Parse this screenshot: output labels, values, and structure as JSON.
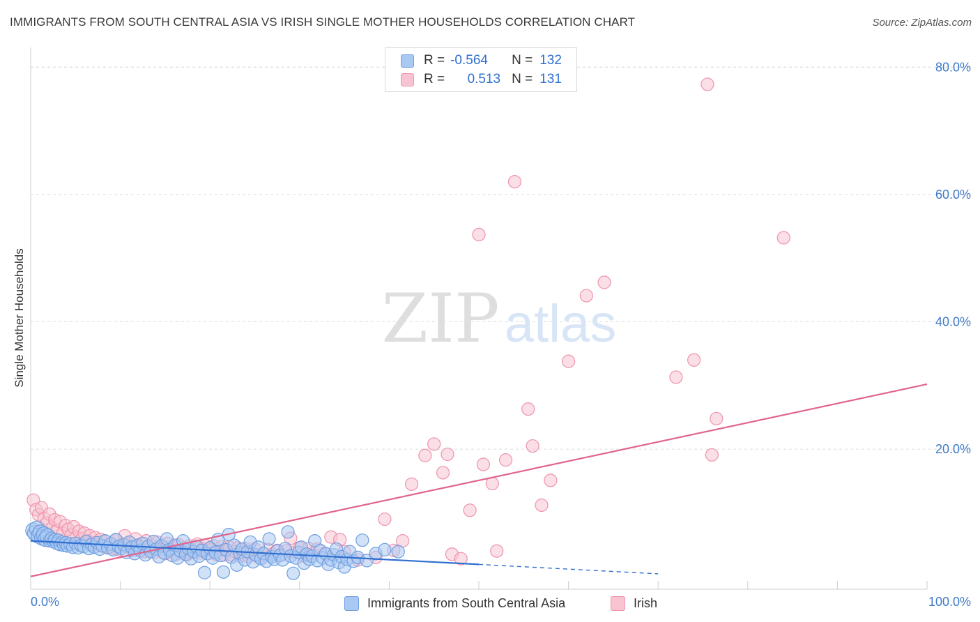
{
  "header": {
    "title": "IMMIGRANTS FROM SOUTH CENTRAL ASIA VS IRISH SINGLE MOTHER HOUSEHOLDS CORRELATION CHART",
    "source": "Source: ZipAtlas.com"
  },
  "watermark": {
    "zip": "ZIP",
    "atlas": "atlas"
  },
  "stats_legend": {
    "rows": [
      {
        "r_label": "R =",
        "r_value": "-0.564",
        "n_label": "N =",
        "n_value": "132",
        "color": "#a9c8f2"
      },
      {
        "r_label": "R =",
        "r_value": "0.513",
        "n_label": "N =",
        "n_value": "131",
        "color": "#f8c4d2"
      }
    ]
  },
  "colors": {
    "blue_fill": "#a9c8f2",
    "blue_stroke": "#6e9fe0",
    "blue_line": "#2f6fd0",
    "pink_fill": "#f8c4d2",
    "pink_stroke": "#ee93ad",
    "pink_line": "#e0648e",
    "axis_text": "#3f79c9",
    "grid": "#dcdcdc"
  },
  "chart_data": {
    "type": "scatter",
    "title": "IMMIGRANTS FROM SOUTH CENTRAL ASIA VS IRISH SINGLE MOTHER HOUSEHOLDS CORRELATION CHART",
    "xlabel": "",
    "ylabel": "Single Mother Households",
    "xlim": [
      0,
      100
    ],
    "ylim": [
      -2,
      82
    ],
    "x_tick_labels": [
      "0.0%",
      "100.0%"
    ],
    "y_ticks": [
      20,
      40,
      60,
      80
    ],
    "y_tick_labels": [
      "20.0%",
      "40.0%",
      "60.0%",
      "80.0%"
    ],
    "grid": true,
    "legend": [
      "Immigrants from South Central Asia",
      "Irish"
    ],
    "series": [
      {
        "name": "Immigrants from South Central Asia",
        "color": "#a9c8f2",
        "points": [
          [
            0.3,
            7.2
          ],
          [
            0.5,
            6.8
          ],
          [
            0.7,
            7.5
          ],
          [
            0.9,
            6.4
          ],
          [
            1.1,
            6.9
          ],
          [
            1.3,
            6.1
          ],
          [
            1.5,
            6.6
          ],
          [
            1.7,
            5.9
          ],
          [
            1.9,
            6.3
          ],
          [
            2.1,
            5.6
          ],
          [
            2.3,
            6.0
          ],
          [
            2.5,
            5.5
          ],
          [
            2.7,
            5.8
          ],
          [
            2.9,
            5.2
          ],
          [
            3.1,
            5.7
          ],
          [
            3.3,
            5.0
          ],
          [
            3.5,
            5.4
          ],
          [
            3.7,
            4.9
          ],
          [
            3.9,
            5.3
          ],
          [
            4.1,
            4.8
          ],
          [
            4.4,
            5.1
          ],
          [
            4.7,
            4.6
          ],
          [
            5.0,
            5.2
          ],
          [
            5.3,
            4.5
          ],
          [
            5.6,
            4.9
          ],
          [
            5.9,
            4.7
          ],
          [
            6.2,
            5.5
          ],
          [
            6.5,
            4.4
          ],
          [
            6.8,
            5.0
          ],
          [
            7.1,
            4.6
          ],
          [
            7.4,
            5.3
          ],
          [
            7.7,
            4.3
          ],
          [
            8.0,
            4.8
          ],
          [
            8.3,
            5.6
          ],
          [
            8.6,
            4.5
          ],
          [
            8.9,
            5.1
          ],
          [
            9.2,
            4.2
          ],
          [
            9.5,
            5.8
          ],
          [
            9.8,
            4.7
          ],
          [
            10.1,
            4.4
          ],
          [
            10.4,
            5.0
          ],
          [
            10.7,
            3.8
          ],
          [
            11.0,
            5.4
          ],
          [
            11.3,
            4.6
          ],
          [
            11.6,
            3.6
          ],
          [
            11.9,
            4.9
          ],
          [
            12.2,
            4.1
          ],
          [
            12.5,
            5.2
          ],
          [
            12.8,
            3.4
          ],
          [
            13.1,
            4.7
          ],
          [
            13.4,
            3.9
          ],
          [
            13.7,
            5.5
          ],
          [
            14.0,
            4.3
          ],
          [
            14.3,
            3.1
          ],
          [
            14.6,
            4.8
          ],
          [
            14.9,
            3.7
          ],
          [
            15.2,
            5.9
          ],
          [
            15.5,
            4.2
          ],
          [
            15.8,
            3.3
          ],
          [
            16.1,
            4.9
          ],
          [
            16.4,
            2.9
          ],
          [
            16.7,
            4.0
          ],
          [
            17.0,
            5.6
          ],
          [
            17.3,
            3.5
          ],
          [
            17.6,
            4.4
          ],
          [
            17.9,
            2.8
          ],
          [
            18.2,
            3.9
          ],
          [
            18.5,
            4.7
          ],
          [
            18.8,
            3.2
          ],
          [
            19.1,
            4.1
          ],
          [
            19.4,
            0.6
          ],
          [
            19.7,
            3.6
          ],
          [
            20.0,
            4.5
          ],
          [
            20.3,
            2.9
          ],
          [
            20.6,
            3.8
          ],
          [
            20.9,
            5.8
          ],
          [
            21.2,
            3.3
          ],
          [
            21.5,
            0.7
          ],
          [
            21.8,
            4.2
          ],
          [
            22.1,
            6.6
          ],
          [
            22.4,
            3.0
          ],
          [
            22.7,
            4.9
          ],
          [
            23.0,
            1.8
          ],
          [
            23.3,
            3.7
          ],
          [
            23.6,
            4.3
          ],
          [
            23.9,
            2.6
          ],
          [
            24.2,
            3.9
          ],
          [
            24.5,
            5.4
          ],
          [
            24.8,
            2.3
          ],
          [
            25.1,
            3.4
          ],
          [
            25.4,
            4.6
          ],
          [
            25.7,
            2.8
          ],
          [
            26.0,
            3.6
          ],
          [
            26.3,
            2.4
          ],
          [
            26.6,
            5.9
          ],
          [
            26.9,
            3.1
          ],
          [
            27.2,
            2.7
          ],
          [
            27.5,
            4.0
          ],
          [
            27.8,
            3.3
          ],
          [
            28.1,
            2.6
          ],
          [
            28.4,
            4.4
          ],
          [
            28.7,
            7.0
          ],
          [
            29.0,
            3.2
          ],
          [
            29.3,
            0.5
          ],
          [
            29.6,
            2.9
          ],
          [
            29.9,
            3.8
          ],
          [
            30.2,
            4.6
          ],
          [
            30.5,
            2.1
          ],
          [
            30.8,
            3.5
          ],
          [
            31.1,
            2.7
          ],
          [
            31.4,
            3.2
          ],
          [
            31.7,
            5.6
          ],
          [
            32.0,
            2.5
          ],
          [
            32.3,
            4.1
          ],
          [
            32.6,
            2.9
          ],
          [
            32.9,
            3.6
          ],
          [
            33.2,
            1.9
          ],
          [
            33.5,
            2.6
          ],
          [
            33.8,
            3.4
          ],
          [
            34.1,
            4.3
          ],
          [
            34.4,
            2.2
          ],
          [
            34.7,
            3.1
          ],
          [
            35.0,
            1.5
          ],
          [
            35.3,
            2.7
          ],
          [
            35.6,
            3.9
          ],
          [
            36.0,
            2.4
          ],
          [
            36.5,
            3.0
          ],
          [
            37.0,
            5.7
          ],
          [
            37.5,
            2.5
          ],
          [
            38.5,
            3.6
          ],
          [
            39.5,
            4.2
          ],
          [
            41.0,
            3.9
          ]
        ]
      },
      {
        "name": "Irish",
        "color": "#f8c4d2",
        "points": [
          [
            0.3,
            12.0
          ],
          [
            0.6,
            10.5
          ],
          [
            0.9,
            9.7
          ],
          [
            1.2,
            10.8
          ],
          [
            1.5,
            9.1
          ],
          [
            1.8,
            8.4
          ],
          [
            2.1,
            9.8
          ],
          [
            2.4,
            7.6
          ],
          [
            2.7,
            8.9
          ],
          [
            3.0,
            7.2
          ],
          [
            3.3,
            8.6
          ],
          [
            3.6,
            6.8
          ],
          [
            3.9,
            8.0
          ],
          [
            4.2,
            7.4
          ],
          [
            4.5,
            6.5
          ],
          [
            4.8,
            7.8
          ],
          [
            5.1,
            6.2
          ],
          [
            5.4,
            7.1
          ],
          [
            5.7,
            5.9
          ],
          [
            6.0,
            6.8
          ],
          [
            6.3,
            5.6
          ],
          [
            6.6,
            6.4
          ],
          [
            6.9,
            5.3
          ],
          [
            7.2,
            6.1
          ],
          [
            7.5,
            5.0
          ],
          [
            7.8,
            5.8
          ],
          [
            8.1,
            4.8
          ],
          [
            8.4,
            5.5
          ],
          [
            8.7,
            4.6
          ],
          [
            9.0,
            5.2
          ],
          [
            9.3,
            4.4
          ],
          [
            9.6,
            5.7
          ],
          [
            9.9,
            4.2
          ],
          [
            10.2,
            5.0
          ],
          [
            10.5,
            6.4
          ],
          [
            10.8,
            4.7
          ],
          [
            11.1,
            5.3
          ],
          [
            11.4,
            4.1
          ],
          [
            11.7,
            5.9
          ],
          [
            12.0,
            4.5
          ],
          [
            12.3,
            5.1
          ],
          [
            12.6,
            3.9
          ],
          [
            12.9,
            5.6
          ],
          [
            13.2,
            4.3
          ],
          [
            13.5,
            4.9
          ],
          [
            13.8,
            3.8
          ],
          [
            14.1,
            5.4
          ],
          [
            14.4,
            4.2
          ],
          [
            14.7,
            4.8
          ],
          [
            15.0,
            3.6
          ],
          [
            15.3,
            5.2
          ],
          [
            15.6,
            4.0
          ],
          [
            15.9,
            4.6
          ],
          [
            16.2,
            3.5
          ],
          [
            16.5,
            5.0
          ],
          [
            16.8,
            3.9
          ],
          [
            17.1,
            4.5
          ],
          [
            17.4,
            3.4
          ],
          [
            17.7,
            4.8
          ],
          [
            18.0,
            3.8
          ],
          [
            18.3,
            4.4
          ],
          [
            18.6,
            5.1
          ],
          [
            18.9,
            3.7
          ],
          [
            19.2,
            4.3
          ],
          [
            19.5,
            4.9
          ],
          [
            19.8,
            3.6
          ],
          [
            20.1,
            4.2
          ],
          [
            20.4,
            4.8
          ],
          [
            20.7,
            3.5
          ],
          [
            21.0,
            4.1
          ],
          [
            21.3,
            4.7
          ],
          [
            21.6,
            3.4
          ],
          [
            21.9,
            4.0
          ],
          [
            22.2,
            4.6
          ],
          [
            22.5,
            3.3
          ],
          [
            22.8,
            3.9
          ],
          [
            23.1,
            4.5
          ],
          [
            23.4,
            3.2
          ],
          [
            23.7,
            3.8
          ],
          [
            24.0,
            4.4
          ],
          [
            24.3,
            3.1
          ],
          [
            24.6,
            3.7
          ],
          [
            25.0,
            4.3
          ],
          [
            25.5,
            3.0
          ],
          [
            26.0,
            3.6
          ],
          [
            26.5,
            4.2
          ],
          [
            27.0,
            3.5
          ],
          [
            27.5,
            4.1
          ],
          [
            28.0,
            3.4
          ],
          [
            28.5,
            4.0
          ],
          [
            29.0,
            6.0
          ],
          [
            29.5,
            3.8
          ],
          [
            30.0,
            4.5
          ],
          [
            30.5,
            3.2
          ],
          [
            31.0,
            4.4
          ],
          [
            31.5,
            3.6
          ],
          [
            32.0,
            4.3
          ],
          [
            33.0,
            3.5
          ],
          [
            33.5,
            6.2
          ],
          [
            34.5,
            5.8
          ],
          [
            35.0,
            3.9
          ],
          [
            36.5,
            2.6
          ],
          [
            38.5,
            3.0
          ],
          [
            39.5,
            9.0
          ],
          [
            40.5,
            4.1
          ],
          [
            41.5,
            5.6
          ],
          [
            42.5,
            14.5
          ],
          [
            44.0,
            19.0
          ],
          [
            45.0,
            20.8
          ],
          [
            46.0,
            16.3
          ],
          [
            46.5,
            19.2
          ],
          [
            47.0,
            3.5
          ],
          [
            48.0,
            2.8
          ],
          [
            49.0,
            10.4
          ],
          [
            50.0,
            53.7
          ],
          [
            50.5,
            17.6
          ],
          [
            51.5,
            14.6
          ],
          [
            52.0,
            4.0
          ],
          [
            53.0,
            18.3
          ],
          [
            54.0,
            62.0
          ],
          [
            55.5,
            26.3
          ],
          [
            56.0,
            20.5
          ],
          [
            57.0,
            11.2
          ],
          [
            58.0,
            15.1
          ],
          [
            60.0,
            33.8
          ],
          [
            62.0,
            44.1
          ],
          [
            64.0,
            46.2
          ],
          [
            72.0,
            31.3
          ],
          [
            74.0,
            34.0
          ],
          [
            76.0,
            19.1
          ],
          [
            76.5,
            24.8
          ],
          [
            75.5,
            77.3
          ],
          [
            84.0,
            53.2
          ]
        ]
      }
    ],
    "trendlines": [
      {
        "series": "Immigrants from South Central Asia",
        "x": [
          0,
          50
        ],
        "y": [
          5.6,
          1.9
        ],
        "dashed_extension_to_x": 70
      },
      {
        "series": "Irish",
        "x": [
          0,
          100
        ],
        "y": [
          0.0,
          30.2
        ]
      }
    ]
  },
  "bottom_legend": {
    "items": [
      {
        "label": "Immigrants from South Central Asia"
      },
      {
        "label": "Irish"
      }
    ]
  }
}
